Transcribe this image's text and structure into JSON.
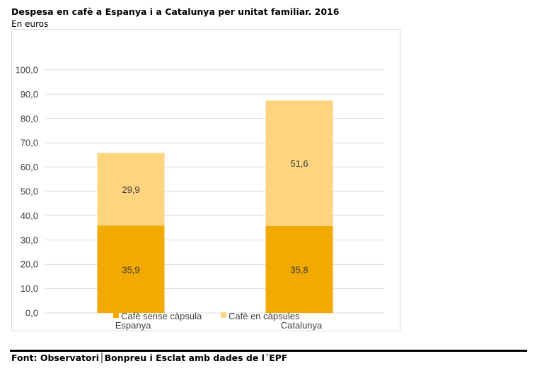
{
  "title": "Despesa en cafè a Espanya i a Catalunya per unitat familiar. 2016",
  "subtitle": "En euros",
  "source": "Font: Observatori│Bonpreu i Esclat amb dades de l´EPF",
  "colors": {
    "series_1": "#f2a900",
    "series_2": "#ffd47f",
    "grid": "#d9d9d9",
    "text": "#404040"
  },
  "chart_data": {
    "type": "bar",
    "stacked": true,
    "categories": [
      "Espanya",
      "Catalunya"
    ],
    "series": [
      {
        "name": "Cafè sense càpsula",
        "values": [
          35.9,
          35.8
        ],
        "labels": [
          "35,9",
          "35,8"
        ]
      },
      {
        "name": "Cafè en càpsules",
        "values": [
          29.9,
          51.6
        ],
        "labels": [
          "29,9",
          "51,6"
        ]
      }
    ],
    "ylim": [
      0,
      100
    ],
    "yticks": [
      "0,0",
      "10,0",
      "20,0",
      "30,0",
      "40,0",
      "50,0",
      "60,0",
      "70,0",
      "80,0",
      "90,0",
      "100,0"
    ],
    "grid": true,
    "legend": "bottom"
  }
}
